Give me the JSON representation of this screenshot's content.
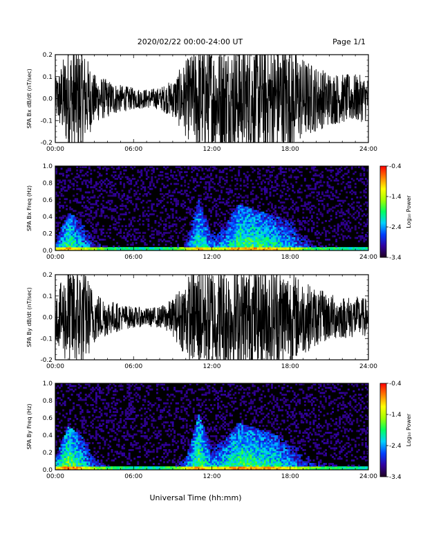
{
  "header": {
    "title": "2020/02/22  00:00-24:00 UT",
    "page": "Page 1/1"
  },
  "colors": {
    "background": "#ffffff",
    "frame": "#000000",
    "waveform": "#000000",
    "spectrogram_background": "#000000"
  },
  "x_axis": {
    "label": "Universal Time (hh:mm)",
    "range_hours": [
      0,
      24
    ],
    "tick_labels": [
      "00:00",
      "06:00",
      "12:00",
      "18:00",
      "24:00"
    ]
  },
  "colorbar": {
    "label": "Log₁₀ Power",
    "range": [
      -3.4,
      -0.4
    ],
    "tick_labels": [
      "-0.4",
      "-1.4",
      "-2.4",
      "-3.4"
    ],
    "colormap": [
      "#200020",
      "#3000a0",
      "#0040ff",
      "#00d0ff",
      "#00ff60",
      "#a0ff00",
      "#ffff00",
      "#ff8000",
      "#ff0000"
    ]
  },
  "chart_data": [
    {
      "type": "line",
      "ylabel": "SPA Bx dB/dt (nT/sec)",
      "ylim": [
        -0.2,
        0.2
      ],
      "y_tick_labels": [
        "0.2",
        "0.1",
        "0.0",
        "-0.1",
        "-0.2"
      ],
      "x_hours": [
        0,
        1,
        2,
        3,
        4,
        5,
        6,
        7,
        8,
        9,
        10,
        11,
        12,
        13,
        14,
        15,
        16,
        17,
        18,
        19,
        20,
        21,
        22,
        23,
        24
      ],
      "amplitude": [
        0.07,
        0.2,
        0.2,
        0.09,
        0.07,
        0.05,
        0.04,
        0.035,
        0.04,
        0.07,
        0.14,
        0.2,
        0.2,
        0.2,
        0.2,
        0.2,
        0.2,
        0.2,
        0.2,
        0.15,
        0.12,
        0.1,
        0.09,
        0.09,
        0.08
      ]
    },
    {
      "type": "heatmap",
      "ylabel": "SPA Bx Freq (Hz)",
      "ylim": [
        0.0,
        1.0
      ],
      "y_tick_labels": [
        "1.0",
        "0.8",
        "0.6",
        "0.4",
        "0.2",
        "0.0"
      ],
      "x_hours": [
        0,
        1,
        2,
        3,
        4,
        5,
        6,
        7,
        8,
        9,
        10,
        11,
        12,
        13,
        14,
        15,
        16,
        17,
        18,
        19,
        20,
        21,
        22,
        23,
        24
      ],
      "band_top_hz": [
        0.12,
        0.45,
        0.35,
        0.15,
        0.1,
        0.08,
        0.06,
        0.05,
        0.06,
        0.08,
        0.12,
        0.6,
        0.2,
        0.3,
        0.55,
        0.5,
        0.45,
        0.4,
        0.35,
        0.25,
        0.15,
        0.12,
        0.1,
        0.1,
        0.1
      ],
      "band_power": [
        -2.3,
        -1.8,
        -2.2,
        -2.6,
        -2.8,
        -2.9,
        -3.0,
        -3.0,
        -3.0,
        -2.8,
        -2.5,
        -1.9,
        -2.3,
        -2.2,
        -1.8,
        -1.8,
        -1.9,
        -2.0,
        -2.2,
        -2.6,
        -2.8,
        -2.9,
        -3.0,
        -3.0,
        -3.0
      ]
    },
    {
      "type": "line",
      "ylabel": "SPA By dB/dt (nT/sec)",
      "ylim": [
        -0.2,
        0.2
      ],
      "y_tick_labels": [
        "0.2",
        "0.1",
        "0.0",
        "-0.1",
        "-0.2"
      ],
      "x_hours": [
        0,
        1,
        2,
        3,
        4,
        5,
        6,
        7,
        8,
        9,
        10,
        11,
        12,
        13,
        14,
        15,
        16,
        17,
        18,
        19,
        20,
        21,
        22,
        23,
        24
      ],
      "amplitude": [
        0.08,
        0.2,
        0.2,
        0.1,
        0.07,
        0.05,
        0.04,
        0.035,
        0.04,
        0.07,
        0.15,
        0.2,
        0.2,
        0.2,
        0.2,
        0.2,
        0.2,
        0.2,
        0.18,
        0.14,
        0.11,
        0.09,
        0.08,
        0.08,
        0.07
      ]
    },
    {
      "type": "heatmap",
      "ylabel": "SPA By Freq (Hz)",
      "ylim": [
        0.0,
        1.0
      ],
      "y_tick_labels": [
        "1.0",
        "0.8",
        "0.6",
        "0.4",
        "0.2",
        "0.0"
      ],
      "x_hours": [
        0,
        1,
        2,
        3,
        4,
        5,
        6,
        7,
        8,
        9,
        10,
        11,
        12,
        13,
        14,
        15,
        16,
        17,
        18,
        19,
        20,
        21,
        22,
        23,
        24
      ],
      "band_top_hz": [
        0.15,
        0.5,
        0.4,
        0.18,
        0.12,
        0.08,
        0.06,
        0.05,
        0.06,
        0.08,
        0.15,
        0.65,
        0.25,
        0.35,
        0.55,
        0.5,
        0.45,
        0.4,
        0.3,
        0.22,
        0.15,
        0.12,
        0.1,
        0.1,
        0.1
      ],
      "band_power": [
        -2.1,
        -1.6,
        -2.0,
        -2.5,
        -2.7,
        -2.9,
        -3.0,
        -3.0,
        -3.0,
        -2.8,
        -2.3,
        -1.7,
        -2.2,
        -2.0,
        -1.8,
        -1.8,
        -1.9,
        -2.0,
        -2.2,
        -2.5,
        -2.7,
        -2.8,
        -2.9,
        -2.9,
        -3.0
      ]
    }
  ]
}
